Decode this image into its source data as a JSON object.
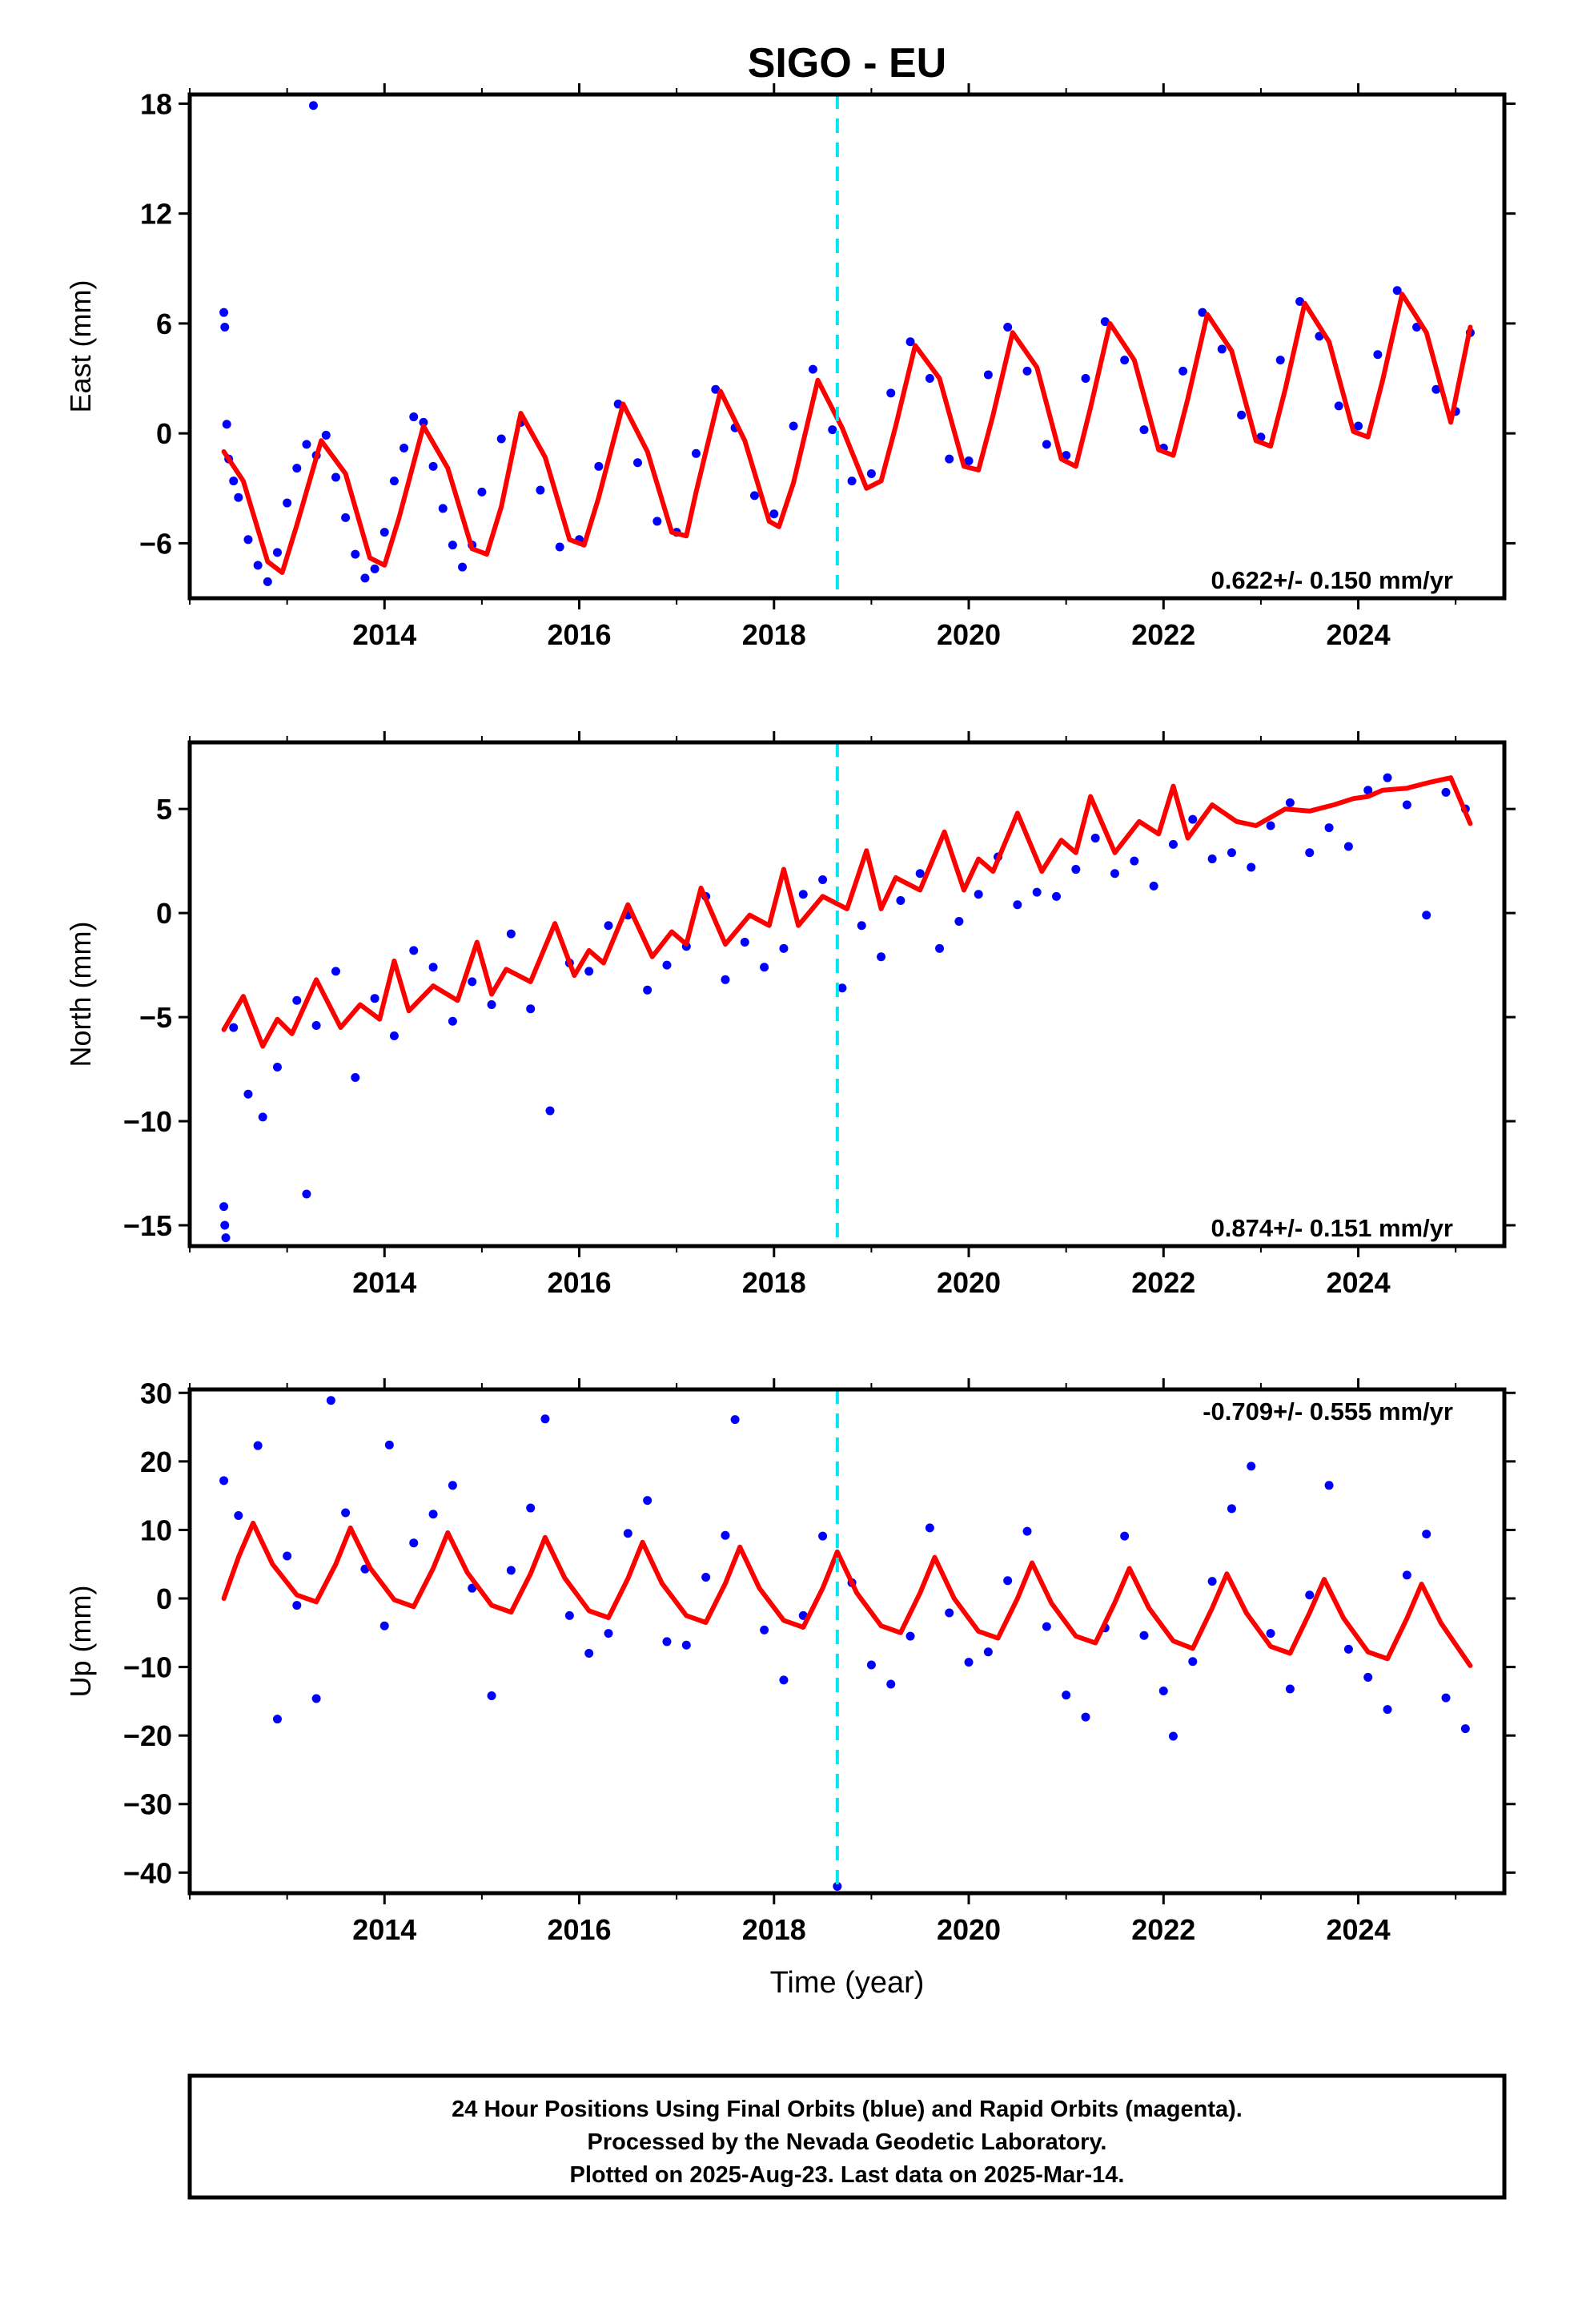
{
  "chart_data": [
    {
      "type": "scatter",
      "panel": "east",
      "title": "SIGO - EU",
      "xlabel": "",
      "ylabel": "East (mm)",
      "xlim": [
        2012.0,
        2025.5
      ],
      "ylim": [
        -9,
        18.5
      ],
      "yticks": [
        -6,
        0,
        6,
        12,
        18
      ],
      "xticks": [
        2014,
        2016,
        2018,
        2020,
        2022,
        2024
      ],
      "rate_label": "0.622+/- 0.150 mm/yr",
      "rate_position": "bottom-right",
      "series": [
        {
          "role": "daily-positions",
          "color": "#0000ff",
          "x": [
            2012.35,
            2012.36,
            2012.38,
            2012.4,
            2012.45,
            2012.5,
            2012.6,
            2012.7,
            2012.8,
            2012.9,
            2013.0,
            2013.1,
            2013.2,
            2013.27,
            2013.3,
            2013.4,
            2013.5,
            2013.6,
            2013.7,
            2013.8,
            2013.9,
            2014.0,
            2014.1,
            2014.2,
            2014.3,
            2014.4,
            2014.5,
            2014.6,
            2014.7,
            2014.8,
            2014.9,
            2015.0,
            2015.2,
            2015.4,
            2015.6,
            2015.8,
            2016.0,
            2016.2,
            2016.4,
            2016.6,
            2016.8,
            2017.0,
            2017.2,
            2017.4,
            2017.6,
            2017.8,
            2018.0,
            2018.2,
            2018.4,
            2018.6,
            2018.8,
            2019.0,
            2019.2,
            2019.4,
            2019.6,
            2019.8,
            2020.0,
            2020.2,
            2020.4,
            2020.6,
            2020.8,
            2021.0,
            2021.2,
            2021.4,
            2021.6,
            2021.8,
            2022.0,
            2022.2,
            2022.4,
            2022.6,
            2022.8,
            2023.0,
            2023.2,
            2023.4,
            2023.6,
            2023.8,
            2024.0,
            2024.2,
            2024.4,
            2024.6,
            2024.8,
            2025.0,
            2025.15
          ],
          "y": [
            6.6,
            5.8,
            0.5,
            -1.4,
            -2.6,
            -3.5,
            -5.8,
            -7.2,
            -8.1,
            -6.5,
            -3.8,
            -1.9,
            -0.6,
            17.9,
            -1.2,
            -0.1,
            -2.4,
            -4.6,
            -6.6,
            -7.9,
            -7.4,
            -5.4,
            -2.6,
            -0.8,
            0.9,
            0.6,
            -1.8,
            -4.1,
            -6.1,
            -7.3,
            -6.1,
            -3.2,
            -0.3,
            0.6,
            -3.1,
            -6.2,
            -5.8,
            -1.8,
            1.6,
            -1.6,
            -4.8,
            -5.4,
            -1.1,
            2.4,
            0.3,
            -3.4,
            -4.4,
            0.4,
            3.5,
            0.2,
            -2.6,
            -2.2,
            2.2,
            5.0,
            3.0,
            -1.4,
            -1.5,
            3.2,
            5.8,
            3.4,
            -0.6,
            -1.2,
            3.0,
            6.1,
            4.0,
            0.2,
            -0.8,
            3.4,
            6.6,
            4.6,
            1.0,
            -0.2,
            4.0,
            7.2,
            5.3,
            1.5,
            0.4,
            4.3,
            7.8,
            5.8,
            2.4,
            1.2,
            5.5
          ]
        },
        {
          "role": "model-fit",
          "color": "#ff0000",
          "x": [
            2012.35,
            2012.55,
            2012.8,
            2012.95,
            2013.1,
            2013.35,
            2013.6,
            2013.85,
            2014.0,
            2014.15,
            2014.4,
            2014.65,
            2014.9,
            2015.05,
            2015.2,
            2015.4,
            2015.65,
            2015.9,
            2016.05,
            2016.2,
            2016.45,
            2016.7,
            2016.95,
            2017.1,
            2017.2,
            2017.45,
            2017.7,
            2017.95,
            2018.05,
            2018.2,
            2018.45,
            2018.7,
            2018.95,
            2019.1,
            2019.25,
            2019.45,
            2019.7,
            2019.95,
            2020.1,
            2020.25,
            2020.45,
            2020.7,
            2020.95,
            2021.1,
            2021.25,
            2021.45,
            2021.7,
            2021.95,
            2022.1,
            2022.25,
            2022.45,
            2022.7,
            2022.95,
            2023.1,
            2023.25,
            2023.45,
            2023.7,
            2023.95,
            2024.1,
            2024.25,
            2024.45,
            2024.7,
            2024.95,
            2025.15
          ],
          "y": [
            -1.0,
            -2.6,
            -7.0,
            -7.6,
            -5.0,
            -0.4,
            -2.2,
            -6.8,
            -7.2,
            -4.6,
            0.4,
            -1.9,
            -6.3,
            -6.6,
            -4.0,
            1.1,
            -1.3,
            -5.8,
            -6.1,
            -3.5,
            1.6,
            -1.0,
            -5.4,
            -5.6,
            -3.2,
            2.3,
            -0.4,
            -4.8,
            -5.1,
            -2.7,
            2.9,
            0.3,
            -3.0,
            -2.6,
            0.4,
            4.8,
            3.0,
            -1.8,
            -2.0,
            1.0,
            5.5,
            3.6,
            -1.4,
            -1.8,
            1.4,
            6.0,
            4.0,
            -0.9,
            -1.2,
            1.9,
            6.5,
            4.5,
            -0.4,
            -0.7,
            2.4,
            7.1,
            5.0,
            0.1,
            -0.2,
            2.9,
            7.6,
            5.5,
            0.6,
            5.8
          ]
        }
      ],
      "event_line": {
        "x": 2018.65,
        "color": "#00e5ee",
        "style": "dashed"
      }
    },
    {
      "type": "scatter",
      "panel": "north",
      "title": "",
      "xlabel": "",
      "ylabel": "North (mm)",
      "xlim": [
        2012.0,
        2025.5
      ],
      "ylim": [
        -16,
        8.2
      ],
      "yticks": [
        -15,
        -10,
        -5,
        0,
        5
      ],
      "xticks": [
        2014,
        2016,
        2018,
        2020,
        2022,
        2024
      ],
      "rate_label": "0.874+/- 0.151 mm/yr",
      "rate_position": "bottom-right",
      "series": [
        {
          "role": "daily-positions",
          "color": "#0000ff",
          "x": [
            2012.35,
            2012.36,
            2012.37,
            2012.45,
            2012.6,
            2012.75,
            2012.9,
            2013.1,
            2013.2,
            2013.3,
            2013.5,
            2013.7,
            2013.9,
            2014.1,
            2014.3,
            2014.5,
            2014.7,
            2014.9,
            2015.1,
            2015.3,
            2015.5,
            2015.7,
            2015.9,
            2016.1,
            2016.3,
            2016.5,
            2016.7,
            2016.9,
            2017.1,
            2017.3,
            2017.5,
            2017.7,
            2017.9,
            2018.1,
            2018.3,
            2018.5,
            2018.7,
            2018.9,
            2019.1,
            2019.3,
            2019.5,
            2019.7,
            2019.9,
            2020.1,
            2020.3,
            2020.5,
            2020.7,
            2020.9,
            2021.1,
            2021.3,
            2021.5,
            2021.7,
            2021.9,
            2022.1,
            2022.3,
            2022.5,
            2022.7,
            2022.9,
            2023.1,
            2023.3,
            2023.5,
            2023.7,
            2023.9,
            2024.1,
            2024.3,
            2024.5,
            2024.7,
            2024.9,
            2025.1
          ],
          "y": [
            -14.1,
            -15.0,
            -15.6,
            -5.5,
            -8.7,
            -9.8,
            -7.4,
            -4.2,
            -13.5,
            -5.4,
            -2.8,
            -7.9,
            -4.1,
            -5.9,
            -1.8,
            -2.6,
            -5.2,
            -3.3,
            -4.4,
            -1.0,
            -4.6,
            -9.5,
            -2.4,
            -2.8,
            -0.6,
            -0.1,
            -3.7,
            -2.5,
            -1.6,
            0.8,
            -3.2,
            -1.4,
            -2.6,
            -1.7,
            0.9,
            1.6,
            -3.6,
            -0.6,
            -2.1,
            0.6,
            1.9,
            -1.7,
            -0.4,
            0.9,
            2.7,
            0.4,
            1.0,
            0.8,
            2.1,
            3.6,
            1.9,
            2.5,
            1.3,
            3.3,
            4.5,
            2.6,
            2.9,
            2.2,
            4.2,
            5.3,
            2.9,
            4.1,
            3.2,
            5.9,
            6.5,
            5.2,
            -0.1,
            5.8,
            5.0
          ]
        },
        {
          "role": "model-fit",
          "color": "#ff0000",
          "x": [
            2012.35,
            2012.55,
            2012.75,
            2012.9,
            2013.05,
            2013.3,
            2013.55,
            2013.75,
            2013.95,
            2014.1,
            2014.25,
            2014.5,
            2014.75,
            2014.95,
            2015.1,
            2015.25,
            2015.5,
            2015.75,
            2015.95,
            2016.1,
            2016.25,
            2016.5,
            2016.75,
            2016.95,
            2017.1,
            2017.25,
            2017.5,
            2017.75,
            2017.95,
            2018.1,
            2018.25,
            2018.5,
            2018.75,
            2018.95,
            2019.1,
            2019.25,
            2019.5,
            2019.75,
            2019.95,
            2020.1,
            2020.25,
            2020.5,
            2020.75,
            2020.95,
            2021.1,
            2021.25,
            2021.5,
            2021.75,
            2021.95,
            2022.1,
            2022.25,
            2022.5,
            2022.75,
            2022.95,
            2023.1,
            2023.25,
            2023.5,
            2023.75,
            2023.95,
            2024.1,
            2024.25,
            2024.5,
            2024.75,
            2024.95,
            2025.15
          ],
          "y": [
            -5.6,
            -4.0,
            -6.4,
            -5.1,
            -5.8,
            -3.2,
            -5.5,
            -4.4,
            -5.1,
            -2.3,
            -4.7,
            -3.5,
            -4.2,
            -1.4,
            -3.9,
            -2.7,
            -3.3,
            -0.5,
            -3.0,
            -1.8,
            -2.4,
            0.4,
            -2.1,
            -0.9,
            -1.5,
            1.2,
            -1.5,
            -0.1,
            -0.6,
            2.1,
            -0.6,
            0.8,
            0.2,
            3.0,
            0.2,
            1.7,
            1.1,
            3.9,
            1.1,
            2.6,
            2.0,
            4.8,
            2.0,
            3.5,
            2.9,
            5.6,
            2.9,
            4.4,
            3.8,
            6.1,
            3.6,
            5.2,
            4.4,
            4.2,
            4.6,
            5.0,
            4.9,
            5.2,
            5.5,
            5.6,
            5.9,
            6.0,
            6.3,
            6.5,
            4.3
          ]
        }
      ],
      "event_line": {
        "x": 2018.65,
        "color": "#00e5ee",
        "style": "dashed"
      }
    },
    {
      "type": "scatter",
      "panel": "up",
      "title": "",
      "xlabel": "Time (year)",
      "ylabel": "Up (mm)",
      "xlim": [
        2012.0,
        2025.5
      ],
      "ylim": [
        -43,
        30.5
      ],
      "yticks": [
        -40,
        -30,
        -20,
        -10,
        0,
        10,
        20,
        30
      ],
      "xticks": [
        2014,
        2016,
        2018,
        2020,
        2022,
        2024
      ],
      "rate_label": "-0.709+/- 0.555 mm/yr",
      "rate_position": "top-right",
      "series": [
        {
          "role": "daily-positions",
          "color": "#0000ff",
          "x": [
            2012.35,
            2012.5,
            2012.7,
            2012.9,
            2013.0,
            2013.1,
            2013.3,
            2013.45,
            2013.6,
            2013.8,
            2014.0,
            2014.05,
            2014.3,
            2014.5,
            2014.7,
            2014.9,
            2015.1,
            2015.3,
            2015.5,
            2015.65,
            2015.9,
            2016.1,
            2016.3,
            2016.5,
            2016.7,
            2016.9,
            2017.1,
            2017.3,
            2017.5,
            2017.6,
            2017.9,
            2018.1,
            2018.3,
            2018.5,
            2018.65,
            2018.8,
            2019.0,
            2019.2,
            2019.4,
            2019.6,
            2019.8,
            2020.0,
            2020.2,
            2020.4,
            2020.6,
            2020.8,
            2021.0,
            2021.2,
            2021.4,
            2021.6,
            2021.8,
            2022.0,
            2022.1,
            2022.3,
            2022.5,
            2022.7,
            2022.9,
            2023.1,
            2023.3,
            2023.5,
            2023.7,
            2023.9,
            2024.1,
            2024.3,
            2024.5,
            2024.7,
            2024.9,
            2025.1
          ],
          "y": [
            17.2,
            12.1,
            22.3,
            -17.6,
            6.2,
            -1.0,
            -14.6,
            28.9,
            12.5,
            4.3,
            -4.0,
            22.4,
            8.1,
            12.3,
            16.5,
            1.5,
            -14.2,
            4.1,
            13.2,
            26.2,
            -2.5,
            -8.0,
            -5.1,
            9.5,
            14.3,
            -6.3,
            -6.8,
            3.1,
            9.2,
            26.1,
            -4.6,
            -11.9,
            -2.5,
            9.1,
            -42.0,
            2.3,
            -9.7,
            -12.5,
            -5.5,
            10.3,
            -2.1,
            -9.3,
            -7.8,
            2.6,
            9.8,
            -4.1,
            -14.1,
            -17.3,
            -4.3,
            9.1,
            -5.4,
            -13.5,
            -20.1,
            -9.2,
            2.5,
            13.1,
            19.3,
            -5.1,
            -13.2,
            0.5,
            16.5,
            -7.4,
            -11.5,
            -16.2,
            3.4,
            9.4,
            -14.5,
            -19.0
          ]
        },
        {
          "role": "model-fit",
          "color": "#ff0000",
          "x": [
            2012.35,
            2012.5,
            2012.65,
            2012.85,
            2013.1,
            2013.3,
            2013.5,
            2013.65,
            2013.85,
            2014.1,
            2014.3,
            2014.5,
            2014.65,
            2014.85,
            2015.1,
            2015.3,
            2015.5,
            2015.65,
            2015.85,
            2016.1,
            2016.3,
            2016.5,
            2016.65,
            2016.85,
            2017.1,
            2017.3,
            2017.5,
            2017.65,
            2017.85,
            2018.1,
            2018.3,
            2018.5,
            2018.65,
            2018.85,
            2019.1,
            2019.3,
            2019.5,
            2019.65,
            2019.85,
            2020.1,
            2020.3,
            2020.5,
            2020.65,
            2020.85,
            2021.1,
            2021.3,
            2021.5,
            2021.65,
            2021.85,
            2022.1,
            2022.3,
            2022.5,
            2022.65,
            2022.85,
            2023.1,
            2023.3,
            2023.5,
            2023.65,
            2023.85,
            2024.1,
            2024.3,
            2024.5,
            2024.65,
            2024.85,
            2025.15
          ],
          "y": [
            0.0,
            6.0,
            11.0,
            5.0,
            0.5,
            -0.5,
            5.0,
            10.3,
            4.5,
            -0.2,
            -1.2,
            4.4,
            9.6,
            3.8,
            -1.0,
            -2.0,
            3.6,
            8.9,
            3.0,
            -1.8,
            -2.8,
            2.9,
            8.2,
            2.2,
            -2.5,
            -3.5,
            2.2,
            7.5,
            1.5,
            -3.2,
            -4.2,
            1.5,
            6.8,
            0.8,
            -4.0,
            -5.0,
            0.8,
            6.0,
            0.0,
            -4.8,
            -5.8,
            0.0,
            5.2,
            -0.7,
            -5.5,
            -6.5,
            -0.6,
            4.4,
            -1.4,
            -6.2,
            -7.3,
            -1.4,
            3.6,
            -2.1,
            -7.0,
            -8.0,
            -2.1,
            2.8,
            -2.9,
            -7.8,
            -8.8,
            -2.9,
            2.1,
            -3.6,
            -9.8
          ]
        }
      ],
      "event_line": {
        "x": 2018.65,
        "color": "#00e5ee",
        "style": "dashed"
      }
    }
  ],
  "caption": {
    "line1": "24 Hour Positions Using Final Orbits (blue) and Rapid Orbits (magenta).",
    "line2": "Processed by the Nevada Geodetic Laboratory.",
    "line3": "Plotted on 2025-Aug-23. Last data on 2025-Mar-14."
  }
}
